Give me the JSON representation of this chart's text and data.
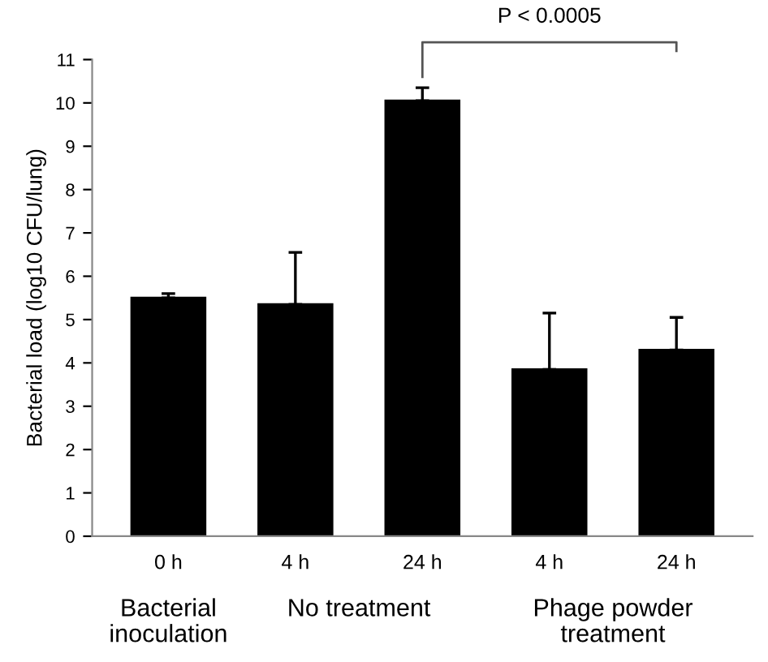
{
  "chart_data": {
    "type": "bar",
    "ylabel": "Bacterial load (log10 CFU/lung)",
    "categories": [
      "0 h",
      "4 h",
      "24 h",
      "4 h",
      "24 h"
    ],
    "values": [
      5.5,
      5.35,
      10.05,
      3.85,
      4.3
    ],
    "errors": [
      0.1,
      1.2,
      0.3,
      1.3,
      0.75
    ],
    "color": "#000000",
    "ylim": [
      0,
      11
    ],
    "yticks": [
      0,
      1,
      2,
      3,
      4,
      5,
      6,
      7,
      8,
      9,
      10,
      11
    ],
    "annotations": [
      "Bacterial\ninoculation",
      "No treatment",
      "Phage powder\ntreatment",
      "P < 0.0005"
    ]
  }
}
